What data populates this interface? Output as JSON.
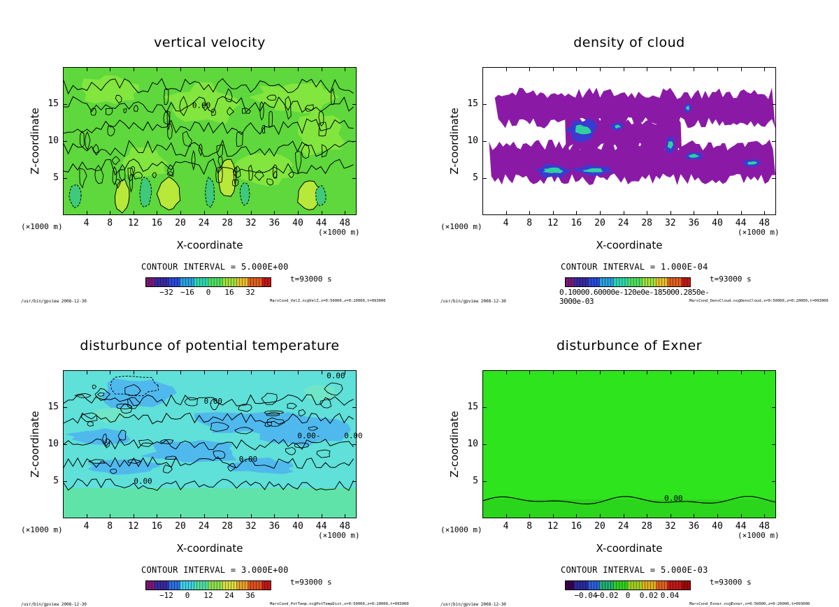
{
  "panels": [
    {
      "title": "vertical velocity",
      "contour_interval": "CONTOUR INTERVAL = 5.000E+00",
      "time": "t=93000 s",
      "colorbar_ticks": [
        "−32",
        "−16",
        "0",
        "16",
        "32"
      ],
      "contour_labels": [
        "0.00"
      ],
      "footer_left": "/usr/bin/gpview  2008-12-30",
      "footer_right": "MarsCond_VelZ.nc@VelZ,x=0:50000,z=0:20000,t=093000",
      "field": "velz"
    },
    {
      "title": "density of cloud",
      "contour_interval": "CONTOUR INTERVAL = 1.000E-04",
      "time": "t=93000 s",
      "colorbar_ticks": [
        "0.10000.60000e-120e0e-185000.2850e-3000e-03"
      ],
      "contour_labels": [],
      "footer_left": "/usr/bin/gpview  2008-12-30",
      "footer_right": "MarsCond_DensCloud.nc@DensCloud,x=0:50000,z=0:20000,t=093000",
      "field": "cloud"
    },
    {
      "title": "disturbunce of potential temperature",
      "contour_interval": "CONTOUR INTERVAL = 3.000E+00",
      "time": "t=93000 s",
      "colorbar_ticks": [
        "−12",
        "0",
        "12",
        "24",
        "36"
      ],
      "contour_labels": [
        "0.00",
        "0.00",
        "0.00-",
        "0.00",
        "0.00",
        "0.00"
      ],
      "footer_left": "/usr/bin/gpview  2008-12-30",
      "footer_right": "MarsCond_PotTemp.nc@PotTempDist,x=0:50000,z=0:20000,t=093000",
      "field": "pt"
    },
    {
      "title": "disturbunce of Exner",
      "contour_interval": "CONTOUR INTERVAL = 5.000E-03",
      "time": "t=93000 s",
      "colorbar_ticks": [
        "−0.04",
        "−0.02",
        "0",
        "0.02",
        "0.04"
      ],
      "contour_labels": [
        "0.00"
      ],
      "footer_left": "/usr/bin/gpview  2008-12-30",
      "footer_right": "MarsCond_Exner.nc@Exner,x=0:50000,z=0:20000,t=093000",
      "field": "exner"
    }
  ],
  "axes": {
    "xlabel": "X-coordinate",
    "ylabel": "Z-coordinate",
    "x_unit_left": "(×1000 m)",
    "x_unit_right": "(×1000 m)",
    "x_ticks": [
      "4",
      "8",
      "12",
      "16",
      "20",
      "24",
      "28",
      "32",
      "36",
      "40",
      "44",
      "48"
    ],
    "y_ticks": [
      "15",
      "10",
      "5"
    ]
  },
  "chart_data": [
    {
      "type": "heatmap",
      "title": "vertical velocity",
      "xlabel": "X-coordinate",
      "ylabel": "Z-coordinate",
      "x_ticks": [
        4,
        8,
        12,
        16,
        20,
        24,
        28,
        32,
        36,
        40,
        44,
        48
      ],
      "y_ticks": [
        5,
        10,
        15
      ],
      "xlim": [
        0,
        50
      ],
      "ylim": [
        0,
        20
      ],
      "colorbar_ticks": [
        -32,
        -16,
        0,
        16,
        32
      ],
      "contour_interval": 5.0,
      "time": 93000
    },
    {
      "type": "heatmap",
      "title": "density of cloud",
      "xlabel": "X-coordinate",
      "ylabel": "Z-coordinate",
      "x_ticks": [
        4,
        8,
        12,
        16,
        20,
        24,
        28,
        32,
        36,
        40,
        44,
        48
      ],
      "y_ticks": [
        5,
        10,
        15
      ],
      "xlim": [
        0,
        50
      ],
      "ylim": [
        0,
        20
      ],
      "contour_interval": 0.0001,
      "time": 93000
    },
    {
      "type": "heatmap",
      "title": "disturbunce of potential temperature",
      "xlabel": "X-coordinate",
      "ylabel": "Z-coordinate",
      "x_ticks": [
        4,
        8,
        12,
        16,
        20,
        24,
        28,
        32,
        36,
        40,
        44,
        48
      ],
      "y_ticks": [
        5,
        10,
        15
      ],
      "xlim": [
        0,
        50
      ],
      "ylim": [
        0,
        20
      ],
      "colorbar_ticks": [
        -12,
        0,
        12,
        24,
        36
      ],
      "contour_interval": 3.0,
      "time": 93000
    },
    {
      "type": "heatmap",
      "title": "disturbunce of Exner",
      "xlabel": "X-coordinate",
      "ylabel": "Z-coordinate",
      "x_ticks": [
        4,
        8,
        12,
        16,
        20,
        24,
        28,
        32,
        36,
        40,
        44,
        48
      ],
      "y_ticks": [
        5,
        10,
        15
      ],
      "xlim": [
        0,
        50
      ],
      "ylim": [
        0,
        20
      ],
      "colorbar_ticks": [
        -0.04,
        -0.02,
        0,
        0.02,
        0.04
      ],
      "contour_interval": 0.005,
      "time": 93000
    }
  ]
}
